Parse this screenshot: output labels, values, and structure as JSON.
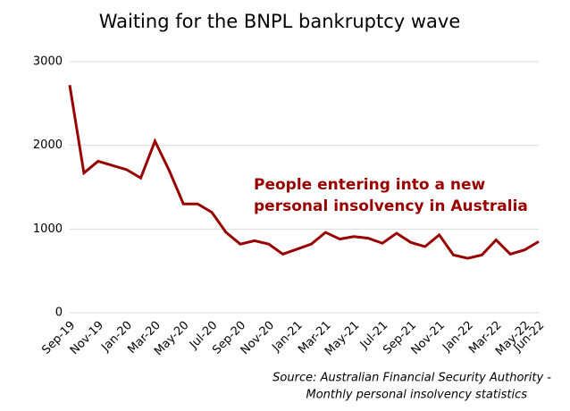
{
  "chart_data": {
    "type": "line",
    "title": "Waiting for the BNPL bankruptcy wave",
    "annotation": [
      "People entering into a new",
      "personal insolvency in Australia"
    ],
    "source": [
      "Source: Australian Financial Security Authority -",
      "Monthly personal insolvency statistics"
    ],
    "categories": [
      "Sep-19",
      null,
      "Nov-19",
      null,
      "Jan-20",
      null,
      "Mar-20",
      null,
      "May-20",
      null,
      "Jul-20",
      null,
      "Sep-20",
      null,
      "Nov-20",
      null,
      "Jan-21",
      null,
      "Mar-21",
      null,
      "May-21",
      null,
      "Jul-21",
      null,
      "Sep-21",
      null,
      "Nov-21",
      null,
      "Jan-22",
      null,
      "Mar-22",
      null,
      "May-22",
      "Jun-22"
    ],
    "series": [
      {
        "color": "#990000",
        "values": [
          2720,
          1670,
          1810,
          1760,
          1710,
          1610,
          2050,
          1700,
          1300,
          1300,
          1200,
          960,
          820,
          860,
          820,
          700,
          760,
          820,
          960,
          880,
          910,
          890,
          830,
          950,
          840,
          790,
          930,
          690,
          650,
          690,
          870,
          700,
          750,
          850
        ]
      }
    ],
    "ylim": [
      0,
      3000
    ],
    "yticks": [
      0,
      1000,
      2000,
      3000
    ],
    "grid": true
  }
}
